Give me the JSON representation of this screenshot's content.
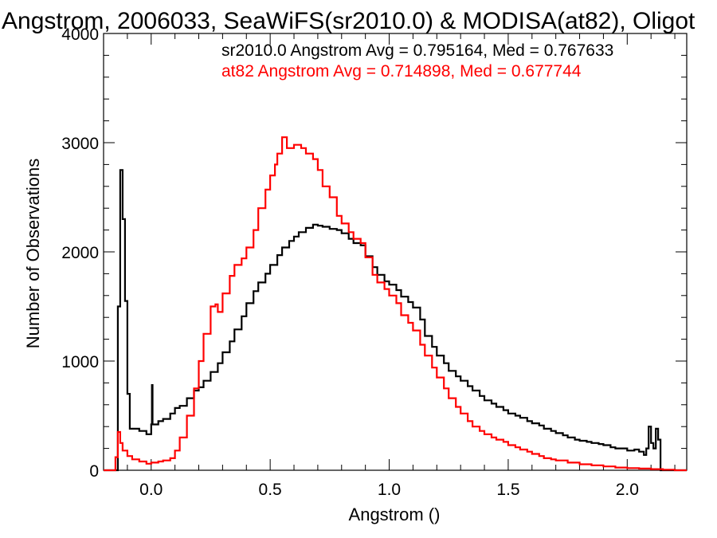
{
  "chart_data": {
    "type": "line",
    "title": "Angstrom, 2006033, SeaWiFS(sr2010.0) & MODISA(at82), Oligot",
    "xlabel": "Angstrom ()",
    "ylabel": "Number of Observations",
    "xlim": [
      -0.2,
      2.25
    ],
    "ylim": [
      0,
      4000
    ],
    "x_ticks": [
      "0.0",
      "0.5",
      "1.0",
      "1.5",
      "2.0"
    ],
    "x_tick_values": [
      0,
      0.5,
      1.0,
      1.5,
      2.0
    ],
    "y_ticks": [
      "0",
      "1000",
      "2000",
      "3000",
      "4000"
    ],
    "y_tick_values": [
      0,
      1000,
      2000,
      3000,
      4000
    ],
    "step": "histogram",
    "grid": false,
    "annotations": [
      {
        "text": "sr2010.0 Angstrom Avg = 0.795164, Med = 0.767633",
        "color": "#000000"
      },
      {
        "text": "at82 Angstrom Avg = 0.714898, Med = 0.677744",
        "color": "#ff0000"
      }
    ],
    "series": [
      {
        "color": "#000000",
        "points": [
          [
            -0.2,
            0
          ],
          [
            -0.15,
            0
          ],
          [
            -0.14,
            1500
          ],
          [
            -0.13,
            2750
          ],
          [
            -0.12,
            2300
          ],
          [
            -0.11,
            1550
          ],
          [
            -0.1,
            700
          ],
          [
            -0.09,
            380
          ],
          [
            -0.05,
            360
          ],
          [
            -0.02,
            330
          ],
          [
            0.0,
            420
          ],
          [
            0.003,
            780
          ],
          [
            0.006,
            420
          ],
          [
            0.03,
            450
          ],
          [
            0.05,
            470
          ],
          [
            0.08,
            520
          ],
          [
            0.1,
            570
          ],
          [
            0.12,
            590
          ],
          [
            0.15,
            660
          ],
          [
            0.18,
            730
          ],
          [
            0.2,
            760
          ],
          [
            0.22,
            820
          ],
          [
            0.25,
            900
          ],
          [
            0.28,
            980
          ],
          [
            0.3,
            1080
          ],
          [
            0.33,
            1180
          ],
          [
            0.35,
            1290
          ],
          [
            0.38,
            1410
          ],
          [
            0.4,
            1530
          ],
          [
            0.43,
            1640
          ],
          [
            0.45,
            1720
          ],
          [
            0.48,
            1800
          ],
          [
            0.5,
            1880
          ],
          [
            0.53,
            1970
          ],
          [
            0.55,
            2040
          ],
          [
            0.58,
            2100
          ],
          [
            0.6,
            2140
          ],
          [
            0.62,
            2180
          ],
          [
            0.65,
            2220
          ],
          [
            0.68,
            2250
          ],
          [
            0.7,
            2240
          ],
          [
            0.72,
            2230
          ],
          [
            0.75,
            2210
          ],
          [
            0.78,
            2200
          ],
          [
            0.8,
            2170
          ],
          [
            0.83,
            2120
          ],
          [
            0.85,
            2080
          ],
          [
            0.88,
            2060
          ],
          [
            0.9,
            1960
          ],
          [
            0.93,
            1860
          ],
          [
            0.95,
            1790
          ],
          [
            0.98,
            1730
          ],
          [
            1.0,
            1700
          ],
          [
            1.03,
            1650
          ],
          [
            1.05,
            1590
          ],
          [
            1.08,
            1540
          ],
          [
            1.1,
            1490
          ],
          [
            1.13,
            1380
          ],
          [
            1.15,
            1230
          ],
          [
            1.18,
            1130
          ],
          [
            1.2,
            1050
          ],
          [
            1.23,
            980
          ],
          [
            1.25,
            910
          ],
          [
            1.28,
            860
          ],
          [
            1.3,
            820
          ],
          [
            1.33,
            770
          ],
          [
            1.35,
            730
          ],
          [
            1.38,
            680
          ],
          [
            1.4,
            640
          ],
          [
            1.43,
            610
          ],
          [
            1.45,
            580
          ],
          [
            1.48,
            550
          ],
          [
            1.5,
            520
          ],
          [
            1.53,
            500
          ],
          [
            1.55,
            480
          ],
          [
            1.58,
            450
          ],
          [
            1.6,
            430
          ],
          [
            1.63,
            410
          ],
          [
            1.65,
            380
          ],
          [
            1.68,
            360
          ],
          [
            1.7,
            340
          ],
          [
            1.73,
            320
          ],
          [
            1.75,
            300
          ],
          [
            1.78,
            280
          ],
          [
            1.8,
            270
          ],
          [
            1.83,
            260
          ],
          [
            1.85,
            250
          ],
          [
            1.88,
            240
          ],
          [
            1.9,
            230
          ],
          [
            1.93,
            210
          ],
          [
            1.95,
            200
          ],
          [
            1.98,
            200
          ],
          [
            2.0,
            180
          ],
          [
            2.03,
            190
          ],
          [
            2.05,
            170
          ],
          [
            2.07,
            140
          ],
          [
            2.08,
            200
          ],
          [
            2.09,
            400
          ],
          [
            2.1,
            250
          ],
          [
            2.11,
            200
          ],
          [
            2.12,
            380
          ],
          [
            2.13,
            280
          ],
          [
            2.14,
            0
          ],
          [
            2.25,
            0
          ]
        ]
      },
      {
        "color": "#ff0000",
        "points": [
          [
            -0.2,
            0
          ],
          [
            -0.16,
            0
          ],
          [
            -0.15,
            120
          ],
          [
            -0.14,
            350
          ],
          [
            -0.13,
            250
          ],
          [
            -0.12,
            180
          ],
          [
            -0.1,
            130
          ],
          [
            -0.08,
            100
          ],
          [
            -0.05,
            80
          ],
          [
            -0.02,
            60
          ],
          [
            0.0,
            70
          ],
          [
            0.03,
            80
          ],
          [
            0.05,
            90
          ],
          [
            0.08,
            110
          ],
          [
            0.1,
            180
          ],
          [
            0.12,
            300
          ],
          [
            0.15,
            500
          ],
          [
            0.18,
            750
          ],
          [
            0.2,
            1000
          ],
          [
            0.22,
            1250
          ],
          [
            0.25,
            1500
          ],
          [
            0.27,
            1520
          ],
          [
            0.28,
            1450
          ],
          [
            0.3,
            1620
          ],
          [
            0.33,
            1780
          ],
          [
            0.35,
            1880
          ],
          [
            0.38,
            1940
          ],
          [
            0.4,
            2040
          ],
          [
            0.43,
            2200
          ],
          [
            0.45,
            2400
          ],
          [
            0.48,
            2570
          ],
          [
            0.5,
            2700
          ],
          [
            0.52,
            2800
          ],
          [
            0.53,
            2900
          ],
          [
            0.55,
            3050
          ],
          [
            0.57,
            2950
          ],
          [
            0.6,
            2980
          ],
          [
            0.63,
            2950
          ],
          [
            0.65,
            2900
          ],
          [
            0.68,
            2850
          ],
          [
            0.7,
            2750
          ],
          [
            0.72,
            2600
          ],
          [
            0.75,
            2500
          ],
          [
            0.78,
            2330
          ],
          [
            0.8,
            2260
          ],
          [
            0.83,
            2180
          ],
          [
            0.85,
            2120
          ],
          [
            0.88,
            2080
          ],
          [
            0.9,
            1950
          ],
          [
            0.93,
            1790
          ],
          [
            0.95,
            1720
          ],
          [
            0.98,
            1660
          ],
          [
            1.0,
            1600
          ],
          [
            1.03,
            1530
          ],
          [
            1.05,
            1420
          ],
          [
            1.08,
            1350
          ],
          [
            1.1,
            1280
          ],
          [
            1.13,
            1150
          ],
          [
            1.15,
            1050
          ],
          [
            1.18,
            940
          ],
          [
            1.2,
            850
          ],
          [
            1.23,
            750
          ],
          [
            1.25,
            660
          ],
          [
            1.28,
            580
          ],
          [
            1.3,
            520
          ],
          [
            1.33,
            450
          ],
          [
            1.35,
            400
          ],
          [
            1.38,
            360
          ],
          [
            1.4,
            330
          ],
          [
            1.43,
            300
          ],
          [
            1.45,
            280
          ],
          [
            1.48,
            260
          ],
          [
            1.5,
            230
          ],
          [
            1.53,
            210
          ],
          [
            1.55,
            190
          ],
          [
            1.58,
            170
          ],
          [
            1.6,
            150
          ],
          [
            1.63,
            130
          ],
          [
            1.65,
            110
          ],
          [
            1.68,
            100
          ],
          [
            1.7,
            90
          ],
          [
            1.75,
            70
          ],
          [
            1.8,
            55
          ],
          [
            1.85,
            45
          ],
          [
            1.9,
            35
          ],
          [
            1.95,
            25
          ],
          [
            2.0,
            20
          ],
          [
            2.05,
            15
          ],
          [
            2.1,
            10
          ],
          [
            2.15,
            5
          ],
          [
            2.2,
            0
          ],
          [
            2.25,
            0
          ]
        ]
      }
    ]
  }
}
